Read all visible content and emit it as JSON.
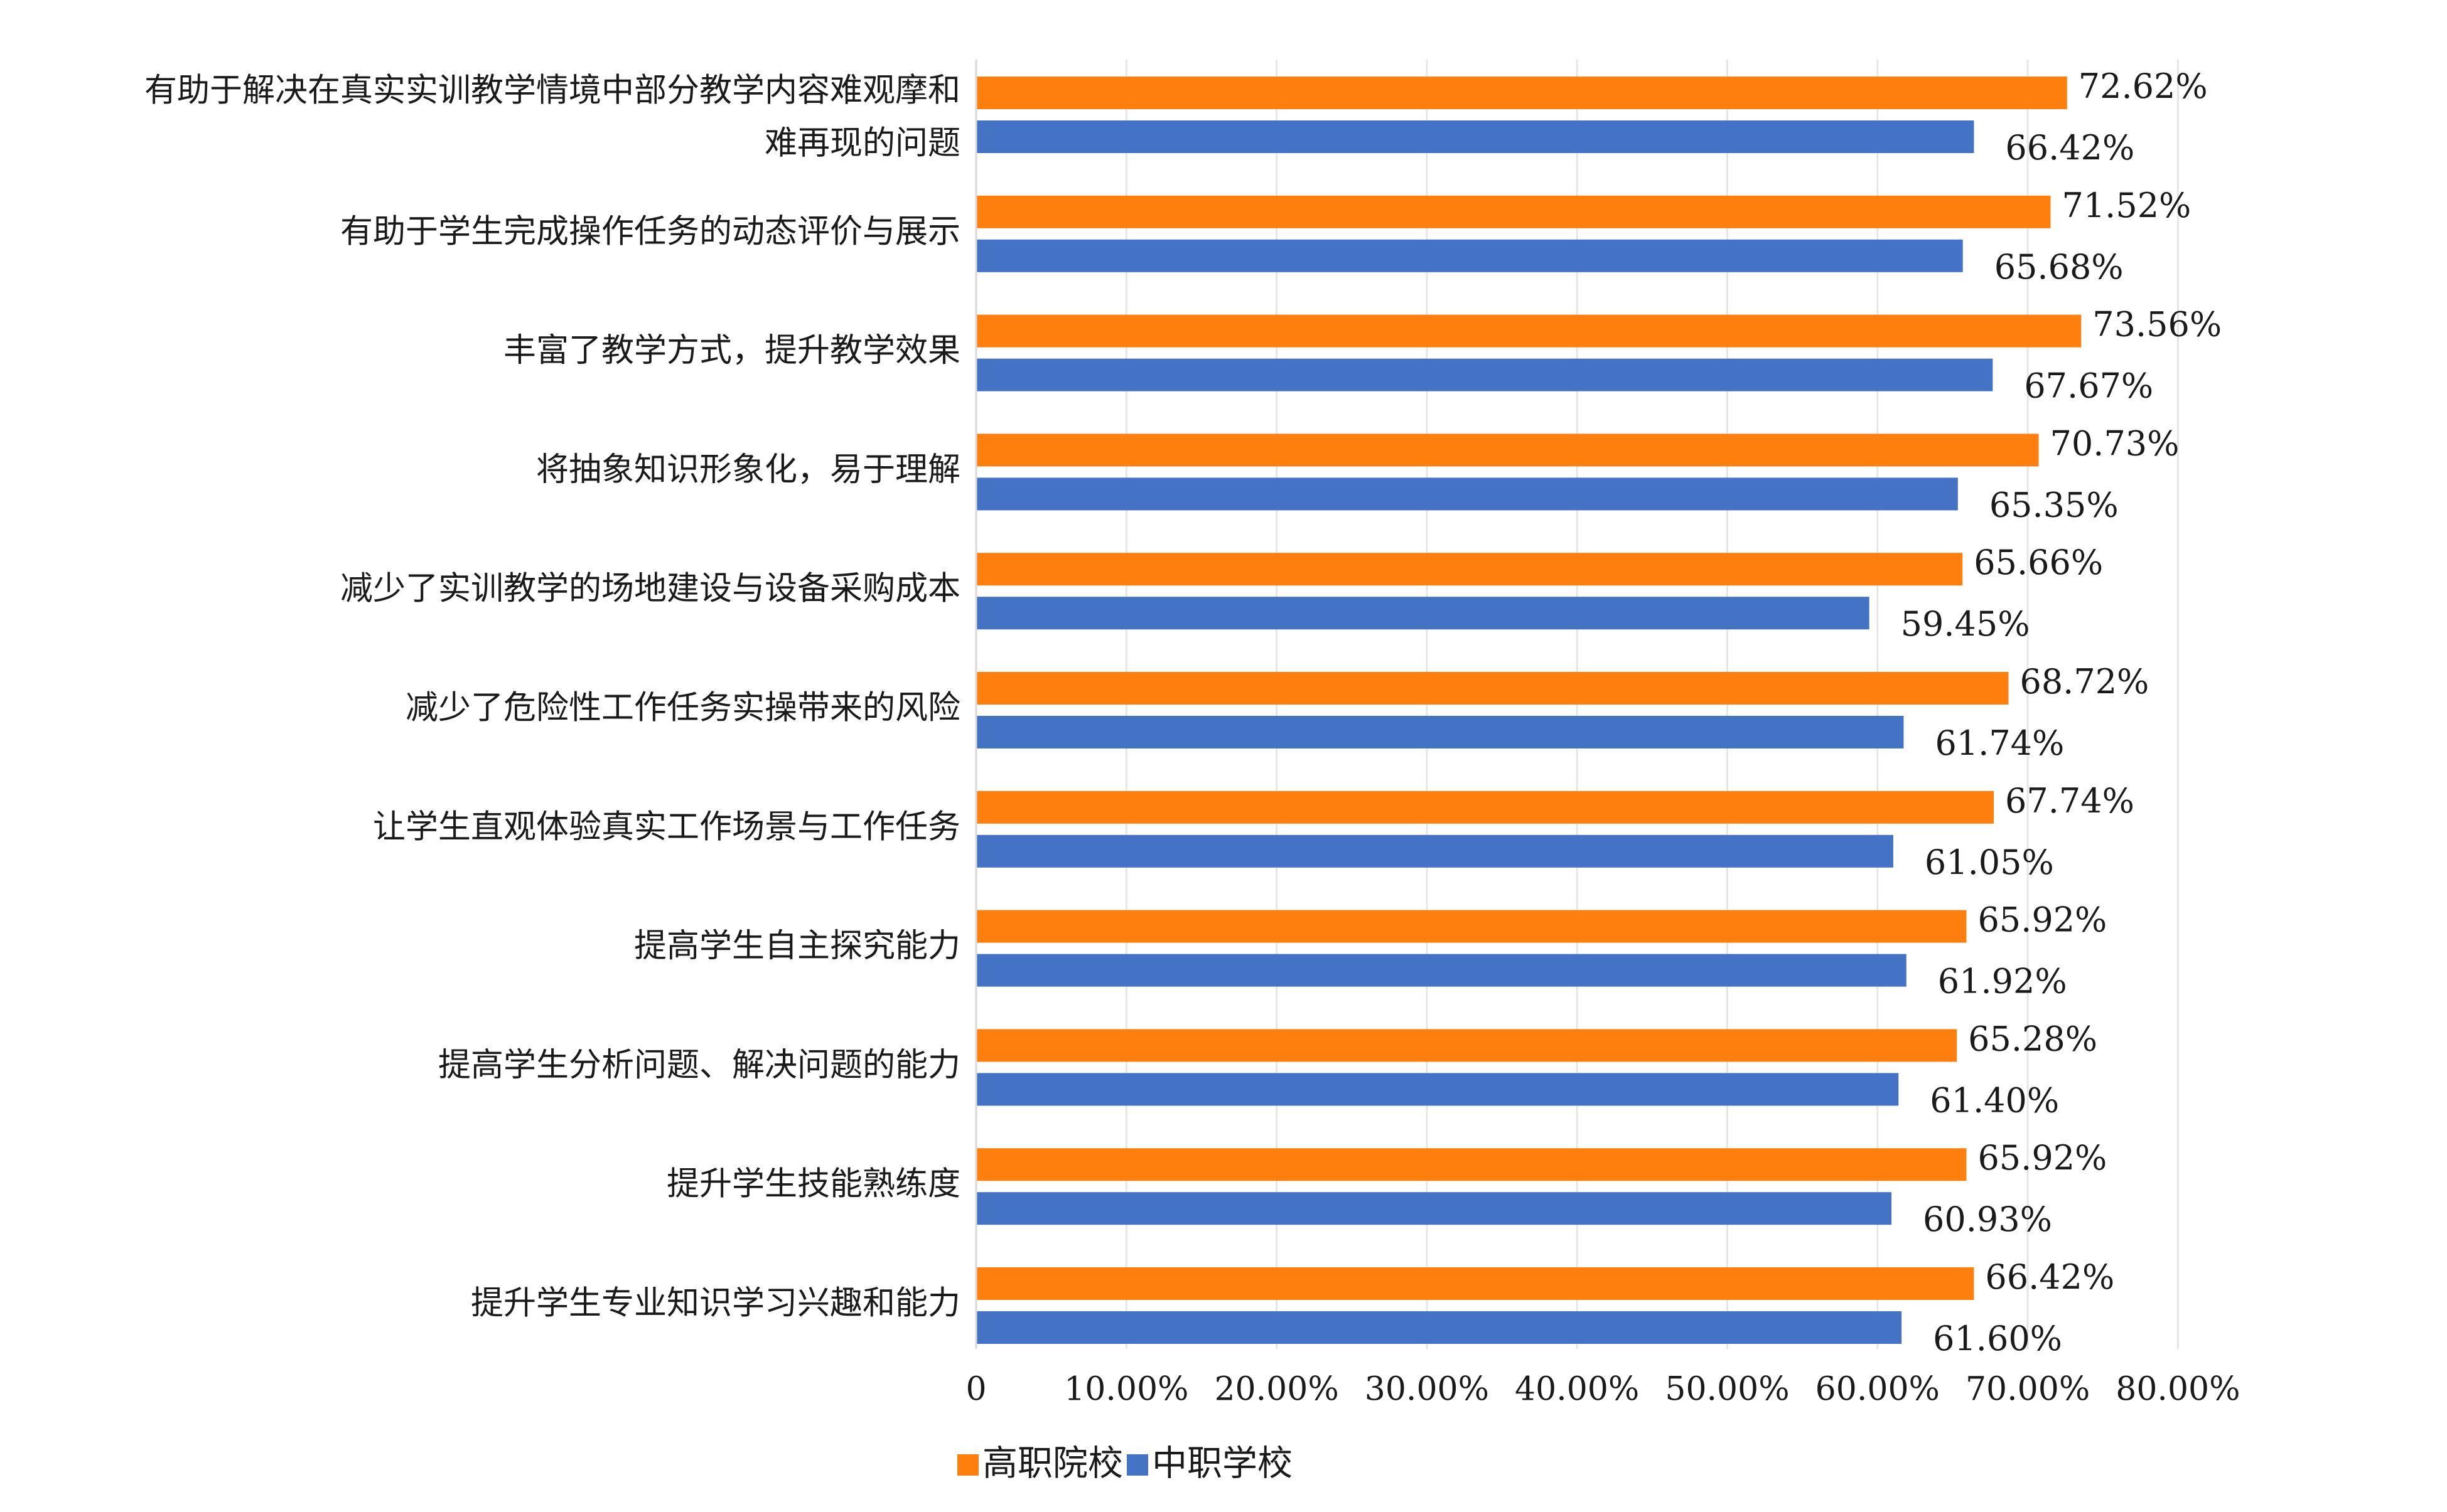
{
  "chart_data": {
    "type": "bar",
    "orientation": "horizontal",
    "categories": [
      [
        "有助于解决在真实实训教学情境中部分教学内容难观摩和",
        "难再现的问题"
      ],
      [
        "有助于学生完成操作任务的动态评价与展示"
      ],
      [
        "丰富了教学方式，提升教学效果"
      ],
      [
        "将抽象知识形象化，易于理解"
      ],
      [
        "减少了实训教学的场地建设与设备采购成本"
      ],
      [
        "减少了危险性工作任务实操带来的风险"
      ],
      [
        "让学生直观体验真实工作场景与工作任务"
      ],
      [
        "提高学生自主探究能力"
      ],
      [
        "提高学生分析问题、解决问题的能力"
      ],
      [
        "提升学生技能熟练度"
      ],
      [
        "提升学生专业知识学习兴趣和能力"
      ]
    ],
    "series": [
      {
        "name": "高职院校",
        "color": "#FF7F0E",
        "values": [
          72.62,
          71.52,
          73.56,
          70.73,
          65.66,
          68.72,
          67.74,
          65.92,
          65.28,
          65.92,
          66.42
        ],
        "labels": [
          "72.62%",
          "71.52%",
          "73.56%",
          "70.73%",
          "65.66%",
          "68.72%",
          "67.74%",
          "65.92%",
          "65.28%",
          "65.92%",
          "66.42%"
        ]
      },
      {
        "name": "中职学校",
        "color": "#4472C4",
        "values": [
          66.42,
          65.68,
          67.67,
          65.35,
          59.45,
          61.74,
          61.05,
          61.92,
          61.4,
          60.93,
          61.6
        ],
        "labels": [
          "66.42%",
          "65.68%",
          "67.67%",
          "65.35%",
          "59.45%",
          "61.74%",
          "61.05%",
          "61.92%",
          "61.40%",
          "60.93%",
          "61.60%"
        ]
      }
    ],
    "xlim": [
      0,
      80
    ],
    "xticks": [
      0,
      10,
      20,
      30,
      40,
      50,
      60,
      70,
      80
    ],
    "xtick_labels": [
      "0",
      "10.00%",
      "20.00%",
      "30.00%",
      "40.00%",
      "50.00%",
      "60.00%",
      "70.00%",
      "80.00%"
    ],
    "grid": true,
    "gridline_color": "#e6e6e6",
    "legend_position": "bottom"
  }
}
